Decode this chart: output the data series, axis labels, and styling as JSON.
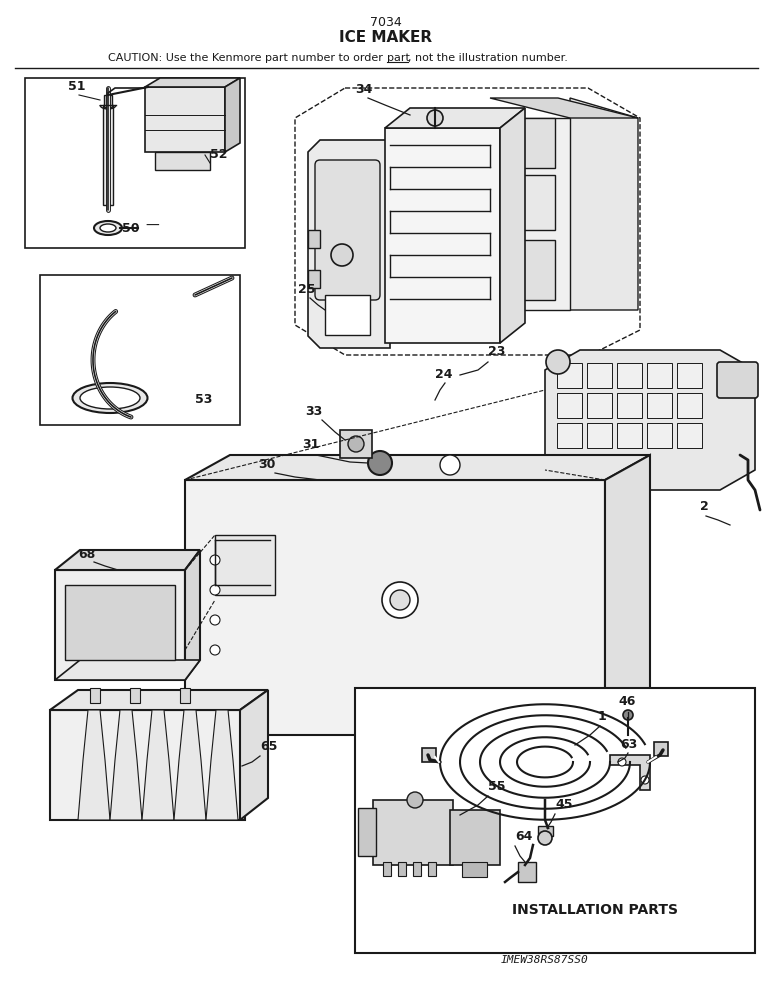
{
  "title_num": "7034",
  "title": "ICE MAKER",
  "caution_text_before": "CAUTION: Use the Kenmore part number to order ",
  "caution_part": "part",
  "caution_text_after": ", not the illustration number.",
  "footer_text": "IMEW38RS87SS0",
  "bg_color": "#ffffff",
  "line_color": "#1a1a1a",
  "figsize": [
    7.73,
    10.0
  ],
  "dpi": 100
}
